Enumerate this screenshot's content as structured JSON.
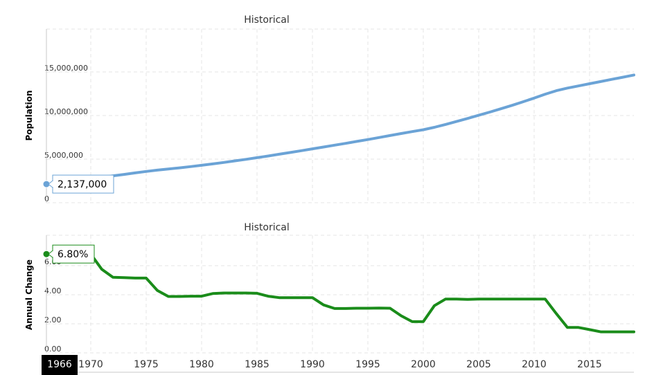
{
  "chart_data": [
    {
      "type": "line",
      "title": "Historical",
      "ylabel": "Population",
      "xlabel": "",
      "ylim": [
        0,
        20000000
      ],
      "xlim": [
        1966,
        2019
      ],
      "yticks": [
        {
          "value": 0,
          "label": "0"
        },
        {
          "value": 5000000,
          "label": "5,000,000"
        },
        {
          "value": 10000000,
          "label": "10,000,000"
        },
        {
          "value": 15000000,
          "label": "15,000,000"
        }
      ],
      "series": [
        {
          "name": "Population",
          "color": "#6ba3d6",
          "x": [
            1966,
            1967,
            1968,
            1969,
            1970,
            1971,
            1972,
            1973,
            1974,
            1975,
            1976,
            1977,
            1978,
            1979,
            1980,
            1981,
            1982,
            1983,
            1984,
            1985,
            1986,
            1987,
            1988,
            1989,
            1990,
            1991,
            1992,
            1993,
            1994,
            1995,
            1996,
            1997,
            1998,
            1999,
            2000,
            2001,
            2002,
            2003,
            2004,
            2005,
            2006,
            2007,
            2008,
            2009,
            2010,
            2011,
            2012,
            2013,
            2014,
            2015,
            2016,
            2017,
            2018,
            2019
          ],
          "values": [
            2137000,
            2282000,
            2437000,
            2603000,
            2780000,
            2940000,
            3090000,
            3250000,
            3420000,
            3590000,
            3740000,
            3870000,
            4000000,
            4140000,
            4290000,
            4450000,
            4620000,
            4800000,
            4980000,
            5170000,
            5360000,
            5560000,
            5760000,
            5970000,
            6180000,
            6390000,
            6600000,
            6810000,
            7030000,
            7250000,
            7480000,
            7710000,
            7940000,
            8160000,
            8370000,
            8650000,
            8980000,
            9320000,
            9670000,
            10030000,
            10400000,
            10780000,
            11170000,
            11580000,
            12000000,
            12450000,
            12850000,
            13150000,
            13400000,
            13650000,
            13900000,
            14150000,
            14400000,
            14650000
          ]
        }
      ],
      "tooltip": {
        "label": "2,137,000"
      }
    },
    {
      "type": "line",
      "title": "Historical",
      "ylabel": "Annual Change",
      "xlabel": "",
      "ylim": [
        0,
        8
      ],
      "xlim": [
        1966,
        2019
      ],
      "yticks": [
        {
          "value": 0,
          "label": "0.00"
        },
        {
          "value": 2,
          "label": "2.00"
        },
        {
          "value": 4,
          "label": "4.00"
        },
        {
          "value": 6,
          "label": "6.00"
        }
      ],
      "series": [
        {
          "name": "Annual Change",
          "color": "#1a8c1a",
          "x": [
            1966,
            1967,
            1968,
            1969,
            1970,
            1971,
            1972,
            1973,
            1974,
            1975,
            1976,
            1977,
            1978,
            1979,
            1980,
            1981,
            1982,
            1983,
            1984,
            1985,
            1986,
            1987,
            1988,
            1989,
            1990,
            1991,
            1992,
            1993,
            1994,
            1995,
            1996,
            1997,
            1998,
            1999,
            2000,
            2001,
            2002,
            2003,
            2004,
            2005,
            2006,
            2007,
            2008,
            2009,
            2010,
            2011,
            2012,
            2013,
            2014,
            2015,
            2016,
            2017,
            2018,
            2019
          ],
          "values": [
            6.8,
            6.8,
            6.8,
            6.8,
            6.8,
            5.75,
            5.2,
            5.18,
            5.15,
            5.15,
            4.3,
            3.88,
            3.88,
            3.9,
            3.9,
            4.08,
            4.12,
            4.12,
            4.12,
            4.1,
            3.9,
            3.8,
            3.8,
            3.8,
            3.8,
            3.3,
            3.05,
            3.05,
            3.07,
            3.07,
            3.08,
            3.07,
            2.55,
            2.15,
            2.15,
            3.25,
            3.7,
            3.7,
            3.68,
            3.7,
            3.7,
            3.7,
            3.7,
            3.7,
            3.7,
            3.7,
            2.7,
            1.75,
            1.75,
            1.6,
            1.45,
            1.45,
            1.45,
            1.45
          ]
        }
      ],
      "tooltip": {
        "label": "6.80%"
      }
    }
  ],
  "x_axis": {
    "ticks": [
      1970,
      1975,
      1980,
      1985,
      1990,
      1995,
      2000,
      2005,
      2010,
      2015
    ],
    "cursor_label": "1966"
  }
}
